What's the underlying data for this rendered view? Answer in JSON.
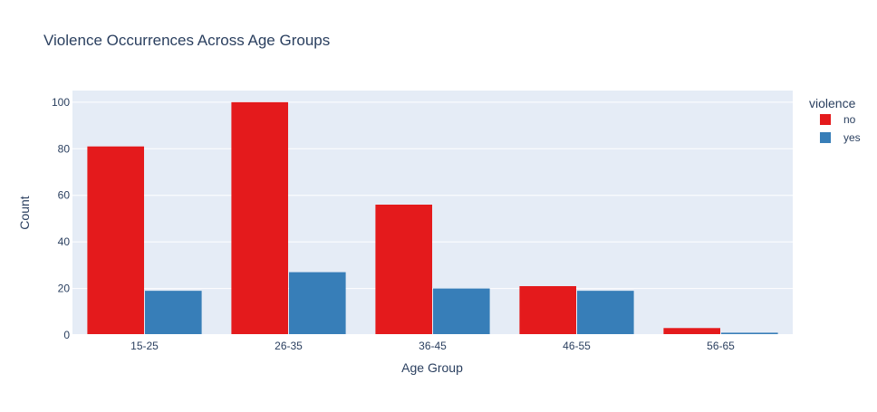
{
  "chart_data": {
    "type": "bar",
    "title": "Violence Occurrences Across Age Groups",
    "xlabel": "Age Group",
    "ylabel": "Count",
    "categories": [
      "15-25",
      "26-35",
      "36-45",
      "46-55",
      "56-65"
    ],
    "series": [
      {
        "name": "no",
        "values": [
          81,
          100,
          56,
          21,
          3
        ],
        "color": "#e41a1c"
      },
      {
        "name": "yes",
        "values": [
          19,
          27,
          20,
          19,
          1
        ],
        "color": "#377eb8"
      }
    ],
    "ylim": [
      0,
      105
    ],
    "yticks": [
      0,
      20,
      40,
      60,
      80,
      100
    ],
    "legend": {
      "title": "violence",
      "placement": "top-right"
    },
    "grid": true,
    "plot_background": "#e5ecf6"
  }
}
